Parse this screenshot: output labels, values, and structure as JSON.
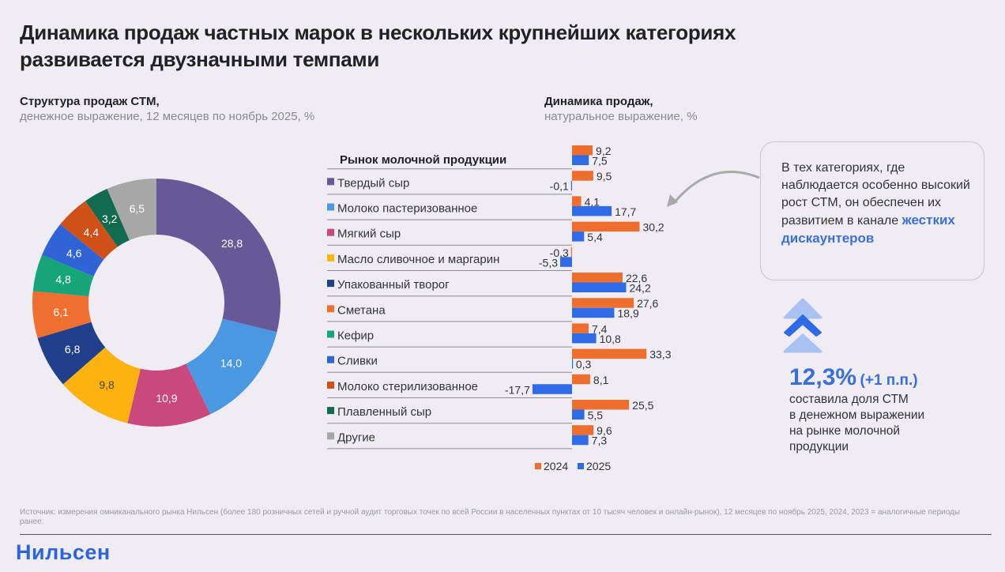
{
  "title": "Динамика продаж частных марок в нескольких крупнейших категориях развивается двузначными темпами",
  "title_line1": "Динамика продаж частных марок в нескольких крупнейших категориях",
  "title_line2": "развивается двузначными темпами",
  "left_panel": {
    "heading": "Структура продаж СТМ,",
    "subheading": "денежное выражение, 12 месяцев по ноябрь 2025, %"
  },
  "right_panel": {
    "heading": "Динамика продаж,",
    "subheading": "натуральное выражение, %"
  },
  "callout": {
    "text_before": "В тех категориях, где наблюдается особенно высокий рост СТМ, он обеспечен их развитием в канале ",
    "highlight": "жестких дискаунтеров"
  },
  "kpi": {
    "value": "12,3%",
    "delta": "(+1 п.п.)",
    "line1": "составила доля СТМ",
    "line2": "в денежном выражении",
    "line3": "на рынке молочной",
    "line4": "продукции",
    "icon": "double-chevron-up-icon"
  },
  "colors": {
    "accent": "#3b6fd8",
    "series_2024": "#ee6f2d",
    "series_2025": "#2f6be6"
  },
  "source": "Источник: измерения омниканального рынка Нильсен (более 180 розничных сетей и ручной аудит торговых точек по всей России в населенных пунктах от 10 тысяч человек и онлайн-рынок), 12 месяцев по ноябрь 2025, 2024, 2023 = аналогичные периоды ранее.",
  "logo": "Нильсен",
  "chart_data": [
    {
      "type": "pie",
      "variant": "donut",
      "title": "Структура продаж СТМ, денежное выражение, 12 месяцев по ноябрь 2025, %",
      "categories": [
        "Твердый сыр",
        "Молоко пастеризованное",
        "Мягкий сыр",
        "Масло сливочное и маргарин",
        "Упакованный творог",
        "Сметана",
        "Кефир",
        "Сливки",
        "Молоко стерилизованное",
        "Плавленный сыр",
        "Другие"
      ],
      "values": [
        28.8,
        14.0,
        10.9,
        9.8,
        6.8,
        6.1,
        4.8,
        4.6,
        4.4,
        3.2,
        6.5
      ],
      "labels": [
        "28,8",
        "14,0",
        "10,9",
        "9,8",
        "6,8",
        "6,1",
        "4,8",
        "4,6",
        "4,4",
        "3,2",
        "6,5"
      ],
      "colors": [
        "#675897",
        "#4a98e2",
        "#c9497c",
        "#fcb20f",
        "#213f8a",
        "#ee6f30",
        "#16a578",
        "#3064d6",
        "#cf5117",
        "#136b4f",
        "#a7a7a7"
      ],
      "label_colors": [
        "#ffffff",
        "#ffffff",
        "#ffffff",
        "#444444",
        "#ffffff",
        "#ffffff",
        "#ffffff",
        "#ffffff",
        "#ffffff",
        "#ffffff",
        "#ffffff"
      ],
      "start": "12 o'clock, clockwise"
    },
    {
      "type": "bar",
      "orientation": "horizontal",
      "title": "Динамика продаж, натуральное выражение, %",
      "header_category": "Рынок молочной продукции",
      "categories": [
        "Рынок молочной продукции",
        "Твердый сыр",
        "Молоко пастеризованное",
        "Мягкий сыр",
        "Масло сливочное и маргарин",
        "Упакованный творог",
        "Сметана",
        "Кефир",
        "Сливки",
        "Молоко стерилизованное",
        "Плавленный сыр",
        "Другие"
      ],
      "series": [
        {
          "name": "2024",
          "color": "#ee6f2d",
          "values": [
            9.2,
            9.5,
            4.1,
            30.2,
            -0.3,
            22.6,
            27.6,
            7.4,
            33.3,
            8.1,
            25.5,
            9.6
          ],
          "labels": [
            "9,2",
            "9,5",
            "4,1",
            "30,2",
            "-0,3",
            "22,6",
            "27,6",
            "7,4",
            "33,3",
            "8,1",
            "25,5",
            "9,6"
          ]
        },
        {
          "name": "2025",
          "color": "#2f6be6",
          "values": [
            7.5,
            -0.1,
            17.7,
            5.4,
            -5.3,
            24.2,
            18.9,
            10.8,
            0.3,
            -17.7,
            5.5,
            7.3
          ],
          "labels": [
            "7,5",
            "-0,1",
            "17,7",
            "5,4",
            "-5,3",
            "24,2",
            "18,9",
            "10,8",
            "0,3",
            "-17,7",
            "5,5",
            "7,3"
          ]
        }
      ],
      "legend": [
        "2024",
        "2025"
      ],
      "legend_position": "bottom",
      "xlim": [
        -18,
        34
      ],
      "grid": false
    }
  ]
}
